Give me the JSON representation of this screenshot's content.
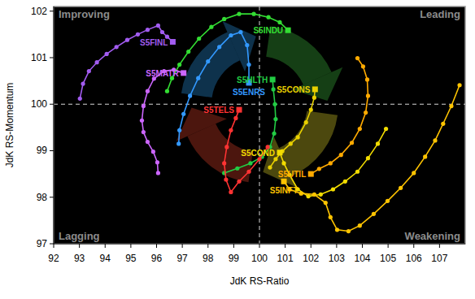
{
  "chart_data": {
    "type": "rrg",
    "x_label": "JdK RS-Ratio",
    "y_label": "JdK RS-Momentum",
    "quadrant_labels": {
      "top_left": "Improving",
      "top_right": "Leading",
      "bottom_left": "Lagging",
      "bottom_right": "Weakening"
    },
    "xlim": [
      92,
      108
    ],
    "ylim": [
      97,
      102.1
    ],
    "xticks": [
      92,
      93,
      94,
      95,
      96,
      97,
      98,
      99,
      100,
      101,
      102,
      103,
      104,
      105,
      106,
      107
    ],
    "yticks": [
      97,
      98,
      99,
      100,
      101,
      102
    ],
    "crosshair": [
      100,
      100
    ],
    "grid": false,
    "marker": "circle",
    "line_style": "solid",
    "series": [
      {
        "name": "S5FINL",
        "color": "#a25cf0",
        "x": [
          93.02,
          93.14,
          93.37,
          93.68,
          94.06,
          94.44,
          94.86,
          95.27,
          95.65,
          96.06,
          96.22,
          96.41,
          96.63
        ],
        "values": [
          100.12,
          100.44,
          100.71,
          100.9,
          101.08,
          101.23,
          101.38,
          101.5,
          101.6,
          101.69,
          101.55,
          101.45,
          101.34
        ]
      },
      {
        "name": "S5MATR",
        "color": "#cc66ff",
        "x": [
          96.06,
          96.03,
          95.87,
          95.65,
          95.49,
          95.43,
          95.49,
          95.65,
          95.9,
          96.29,
          96.67,
          97.05
        ],
        "values": [
          98.52,
          98.75,
          98.98,
          99.19,
          99.4,
          99.65,
          99.96,
          100.28,
          100.55,
          100.71,
          100.74,
          100.67
        ]
      },
      {
        "name": "S5INDU",
        "color": "#33dd33",
        "x": [
          96.41,
          96.6,
          96.89,
          97.24,
          97.65,
          98.13,
          98.63,
          99.21,
          99.78,
          100.35,
          100.79,
          101.11
        ],
        "values": [
          100.28,
          100.56,
          100.85,
          101.13,
          101.41,
          101.66,
          101.83,
          101.94,
          101.94,
          101.87,
          101.76,
          101.59
        ]
      },
      {
        "name": "S5HLTH",
        "color": "#22cc44",
        "x": [
          98.63,
          99.14,
          99.65,
          100.1,
          100.41,
          100.57,
          100.63,
          100.6,
          100.54,
          100.51
        ],
        "values": [
          98.52,
          98.62,
          98.73,
          98.87,
          99.08,
          99.37,
          99.68,
          100.0,
          100.32,
          100.53
        ]
      },
      {
        "name": "S5ENRS",
        "color": "#3399ff",
        "x": [
          96.86,
          96.89,
          97.05,
          97.3,
          97.62,
          98.0,
          98.44,
          98.89,
          99.27,
          99.52,
          99.59,
          99.59
        ],
        "values": [
          99.15,
          99.44,
          99.79,
          100.18,
          100.56,
          100.92,
          101.23,
          101.48,
          101.55,
          101.27,
          100.85,
          100.46
        ]
      },
      {
        "name": "S5TELS",
        "color": "#ff3333",
        "x": [
          100.32,
          100.0,
          99.59,
          99.21,
          98.89,
          98.7,
          98.63,
          98.73,
          98.89,
          99.08,
          99.21
        ],
        "values": [
          99.08,
          98.82,
          98.55,
          98.34,
          98.11,
          98.38,
          98.73,
          99.08,
          99.44,
          99.7,
          99.88
        ]
      },
      {
        "name": "S5CONS",
        "color": "#e8d000",
        "x": [
          100.41,
          100.63,
          100.89,
          101.21,
          101.49,
          101.81,
          102.0,
          102.13,
          102.16
        ],
        "values": [
          98.64,
          98.82,
          98.99,
          99.15,
          99.29,
          99.61,
          99.88,
          100.14,
          100.32
        ]
      },
      {
        "name": "S5COND",
        "color": "#f2dc00",
        "x": [
          104.92,
          104.6,
          104.22,
          103.81,
          103.33,
          102.86,
          102.38,
          101.9,
          101.49,
          101.17,
          100.95,
          100.79
        ],
        "values": [
          99.47,
          99.15,
          98.84,
          98.55,
          98.34,
          98.17,
          98.06,
          98.02,
          98.17,
          98.48,
          98.73,
          98.96
        ]
      },
      {
        "name": "S5UTIL",
        "color": "#ffaa00",
        "x": [
          103.81,
          104.03,
          104.19,
          104.22,
          104.13,
          103.9,
          103.59,
          103.17,
          102.76,
          102.32,
          102.0
        ],
        "values": [
          100.99,
          100.81,
          100.53,
          100.18,
          99.82,
          99.47,
          99.17,
          98.91,
          98.73,
          98.61,
          98.5
        ]
      },
      {
        "name": "S5INFT",
        "color": "#ffc400",
        "x": [
          107.78,
          107.46,
          107.14,
          106.83,
          106.44,
          106.0,
          105.49,
          104.98,
          104.44,
          103.9,
          103.46,
          103.02,
          102.76,
          102.57,
          102.13,
          101.62,
          101.17,
          100.95
        ],
        "values": [
          100.41,
          99.96,
          99.58,
          99.22,
          98.87,
          98.52,
          98.2,
          97.92,
          97.64,
          97.39,
          97.27,
          97.3,
          97.57,
          97.88,
          98.06,
          98.08,
          98.17,
          98.34
        ]
      }
    ]
  }
}
